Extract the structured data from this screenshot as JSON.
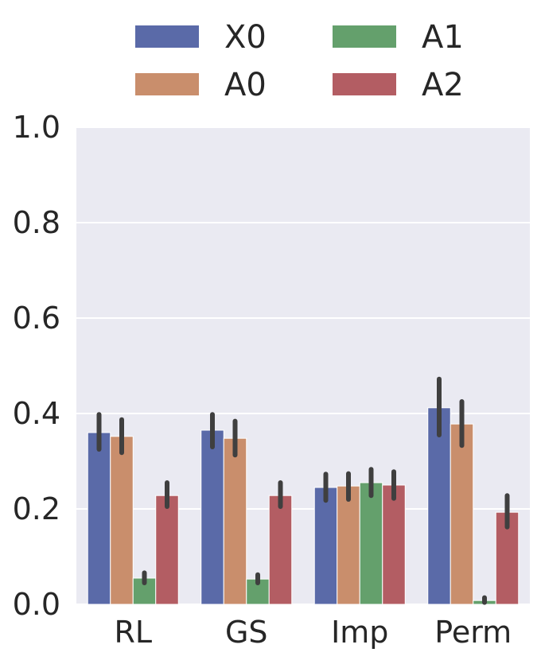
{
  "chart_data": {
    "type": "bar",
    "title": "",
    "xlabel": "",
    "ylabel": "",
    "categories": [
      "RL",
      "GS",
      "Imp",
      "Perm"
    ],
    "ylim": [
      0.0,
      1.0
    ],
    "yticks": [
      "0.0",
      "0.2",
      "0.4",
      "0.6",
      "0.8",
      "1.0"
    ],
    "grid": true,
    "legend_position": "top",
    "series": [
      {
        "name": "X0",
        "color": "#5a6aa8",
        "values": [
          0.36,
          0.365,
          0.245,
          0.412
        ],
        "err_low": [
          0.325,
          0.33,
          0.218,
          0.355
        ],
        "err_high": [
          0.398,
          0.398,
          0.273,
          0.472
        ]
      },
      {
        "name": "A0",
        "color": "#c98e6c",
        "values": [
          0.352,
          0.348,
          0.248,
          0.378
        ],
        "err_low": [
          0.318,
          0.313,
          0.22,
          0.333
        ],
        "err_high": [
          0.387,
          0.384,
          0.274,
          0.425
        ]
      },
      {
        "name": "A1",
        "color": "#64a06c",
        "values": [
          0.055,
          0.053,
          0.255,
          0.008
        ],
        "err_low": [
          0.045,
          0.045,
          0.228,
          0.004
        ],
        "err_high": [
          0.066,
          0.062,
          0.283,
          0.014
        ]
      },
      {
        "name": "A2",
        "color": "#b35d63",
        "values": [
          0.228,
          0.228,
          0.25,
          0.193
        ],
        "err_low": [
          0.205,
          0.205,
          0.222,
          0.162
        ],
        "err_high": [
          0.255,
          0.255,
          0.278,
          0.228
        ]
      }
    ]
  }
}
